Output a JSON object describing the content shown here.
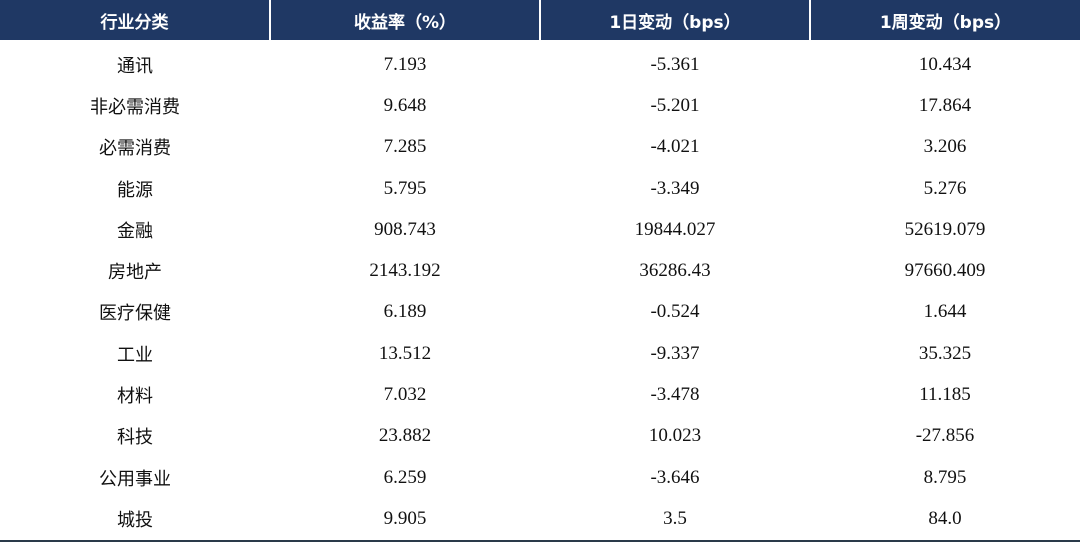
{
  "table": {
    "header": [
      "行业分类",
      "收益率（%）",
      "1日变动（bps）",
      "1周变动（bps）"
    ],
    "rows": [
      [
        "通讯",
        "7.193",
        "-5.361",
        "10.434"
      ],
      [
        "非必需消费",
        "9.648",
        "-5.201",
        "17.864"
      ],
      [
        "必需消费",
        "7.285",
        "-4.021",
        "3.206"
      ],
      [
        "能源",
        "5.795",
        "-3.349",
        "5.276"
      ],
      [
        "金融",
        "908.743",
        "19844.027",
        "52619.079"
      ],
      [
        "房地产",
        "2143.192",
        "36286.43",
        "97660.409"
      ],
      [
        "医疗保健",
        "6.189",
        "-0.524",
        "1.644"
      ],
      [
        "工业",
        "13.512",
        "-9.337",
        "35.325"
      ],
      [
        "材料",
        "7.032",
        "-3.478",
        "11.185"
      ],
      [
        "科技",
        "23.882",
        "10.023",
        "-27.856"
      ],
      [
        "公用事业",
        "6.259",
        "-3.646",
        "8.795"
      ],
      [
        "城投",
        "9.905",
        "3.5",
        "84.0"
      ]
    ]
  }
}
